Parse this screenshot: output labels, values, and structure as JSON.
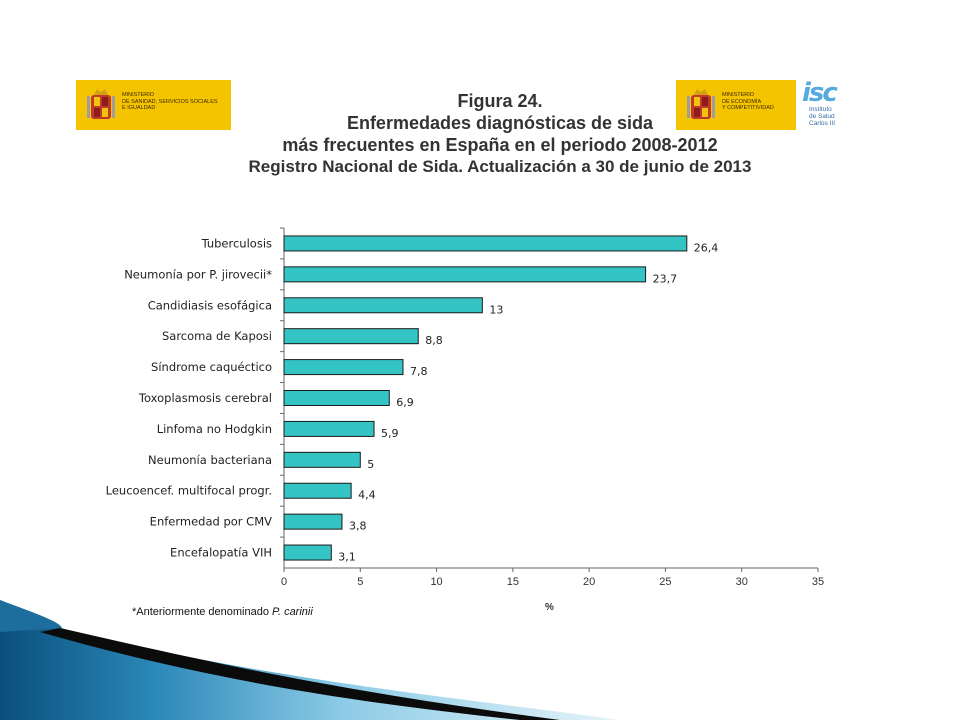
{
  "logos": {
    "left": {
      "lines": [
        "MINISTERIO",
        "DE SANIDAD, SERVICIOS SOCIALES",
        "E IGUALDAD"
      ]
    },
    "right": {
      "lines": [
        "MINISTERIO",
        "DE ECONOMÍA",
        "Y COMPETITIVIDAD"
      ]
    },
    "isc": {
      "mark": "isc",
      "lines": [
        "Instituto",
        "de Salud",
        "Carlos III"
      ]
    }
  },
  "chart_data": {
    "type": "bar",
    "orientation": "horizontal",
    "title_lines": [
      "Figura 24.",
      "Enfermedades diagnósticas de sida",
      "más frecuentes en España en el periodo 2008-2012",
      "Registro Nacional de Sida. Actualización a 30 de junio de 2013"
    ],
    "categories": [
      "Tuberculosis",
      "Neumonía por P. jirovecii*",
      "Candidiasis esofágica",
      "Sarcoma de Kaposi",
      "Síndrome caquéctico",
      "Toxoplasmosis cerebral",
      "Linfoma no Hodgkin",
      "Neumonía bacteriana",
      "Leucoencef. multifocal progr.",
      "Enfermedad por CMV",
      "Encefalopatía VIH"
    ],
    "values": [
      26.4,
      23.7,
      13,
      8.8,
      7.8,
      6.9,
      5.9,
      5,
      4.4,
      3.8,
      3.1
    ],
    "value_labels": [
      "26,4",
      "23,7",
      "13",
      "8,8",
      "7,8",
      "6,9",
      "5,9",
      "5",
      "4,4",
      "3,8",
      "3,1"
    ],
    "xlabel": "%",
    "xlim": [
      0,
      35
    ],
    "xticks": [
      0,
      5,
      10,
      15,
      20,
      25,
      30,
      35
    ],
    "bar_color": "#35c4c4",
    "grid": false,
    "legend": "none"
  },
  "footnote": {
    "text": "*Anteriormente denominado ",
    "italic": "P. carinii"
  }
}
